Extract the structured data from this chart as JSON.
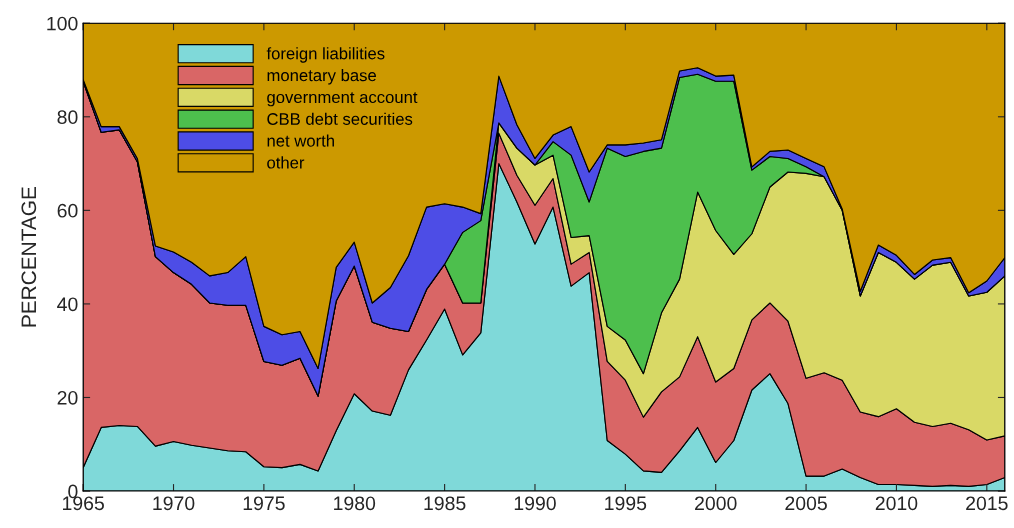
{
  "chart_data": {
    "type": "area",
    "stacked": true,
    "ylabel": "PERCENTAGE",
    "xlim": [
      1965,
      2016
    ],
    "ylim": [
      0,
      100
    ],
    "xticks": [
      1965,
      1970,
      1975,
      1980,
      1985,
      1990,
      1995,
      2000,
      2005,
      2010,
      2015
    ],
    "yticks": [
      0,
      20,
      40,
      60,
      80,
      100
    ],
    "grid": false,
    "legend": "top left",
    "x": [
      1965,
      1966,
      1967,
      1968,
      1969,
      1970,
      1971,
      1972,
      1973,
      1974,
      1975,
      1976,
      1977,
      1978,
      1979,
      1980,
      1981,
      1982,
      1983,
      1984,
      1985,
      1986,
      1987,
      1988,
      1989,
      1990,
      1991,
      1992,
      1993,
      1994,
      1995,
      1996,
      1997,
      1998,
      1999,
      2000,
      2001,
      2002,
      2003,
      2004,
      2005,
      2006,
      2007,
      2008,
      2009,
      2010,
      2011,
      2012,
      2013,
      2014,
      2015,
      2016
    ],
    "series": [
      {
        "name": "foreign liabilities",
        "color": "#7fd9d9",
        "values": [
          5.0,
          13.6,
          14.0,
          13.8,
          9.6,
          10.6,
          9.8,
          9.2,
          8.6,
          8.4,
          5.2,
          5.0,
          5.7,
          4.3,
          12.9,
          20.8,
          17.1,
          16.2,
          25.9,
          32.3,
          38.9,
          29.1,
          33.8,
          70.0,
          61.8,
          52.8,
          60.7,
          43.8,
          46.7,
          10.8,
          7.9,
          4.3,
          4.0,
          8.6,
          13.6,
          6.1,
          10.8,
          21.6,
          25.1,
          18.7,
          3.2,
          3.2,
          4.7,
          2.9,
          1.4,
          1.4,
          1.2,
          1.0,
          1.2,
          1.0,
          1.4,
          2.9
        ]
      },
      {
        "name": "monetary base",
        "color": "#d96666",
        "values": [
          82.6,
          63.1,
          63.2,
          56.6,
          40.5,
          36.1,
          34.4,
          31.0,
          31.1,
          31.3,
          22.5,
          21.9,
          22.7,
          16.0,
          27.7,
          27.3,
          19.0,
          18.6,
          8.2,
          10.8,
          9.6,
          11.1,
          6.4,
          6.5,
          5.7,
          8.3,
          6.1,
          4.7,
          4.3,
          16.9,
          15.8,
          11.5,
          17.2,
          15.8,
          19.4,
          17.2,
          15.4,
          15.0,
          15.1,
          17.6,
          20.9,
          22.1,
          19.0,
          14.0,
          14.5,
          16.2,
          13.5,
          12.8,
          13.3,
          12.1,
          9.5,
          8.9
        ]
      },
      {
        "name": "government account",
        "color": "#d9d966",
        "values": [
          0,
          0,
          0,
          0,
          0,
          0,
          0,
          0,
          0,
          0,
          0,
          0,
          0,
          0,
          0,
          0,
          0,
          0,
          0,
          0,
          0,
          0,
          0,
          2.2,
          5.8,
          8.6,
          5.0,
          5.7,
          3.6,
          7.5,
          8.6,
          9.3,
          16.9,
          20.9,
          30.9,
          32.4,
          24.4,
          18.4,
          24.8,
          31.9,
          43.8,
          41.9,
          36.3,
          24.8,
          35.1,
          31.3,
          30.6,
          34.5,
          34.4,
          28.6,
          31.6,
          34.2
        ]
      },
      {
        "name": "CBB debt securities",
        "color": "#4dbf4d",
        "values": [
          0,
          0,
          0,
          0,
          0,
          0,
          0,
          0,
          0,
          0,
          0,
          0,
          0,
          0,
          0,
          0,
          0,
          0,
          0,
          0,
          0,
          15.1,
          17.6,
          0,
          0,
          0,
          2.9,
          17.6,
          7.2,
          38.1,
          39.2,
          47.5,
          35.2,
          43.1,
          25.2,
          31.9,
          37.0,
          13.6,
          6.5,
          2.9,
          1.4,
          0,
          0,
          0,
          0,
          0,
          0,
          0,
          0,
          0,
          0,
          0
        ]
      },
      {
        "name": "net worth",
        "color": "#4d4de6",
        "values": [
          0.4,
          1.2,
          0.7,
          0.7,
          2.3,
          4.4,
          4.7,
          5.8,
          7.0,
          10.4,
          7.5,
          6.5,
          5.7,
          5.9,
          7.2,
          5.1,
          4.1,
          8.7,
          16.2,
          17.6,
          12.9,
          5.4,
          1.5,
          10.0,
          5.0,
          1.4,
          1.4,
          6.1,
          6.4,
          0.7,
          2.5,
          1.8,
          1.8,
          1.4,
          1.4,
          1.1,
          1.3,
          0.7,
          1.1,
          1.8,
          1.8,
          2.1,
          0.3,
          1.0,
          1.6,
          1.5,
          1.0,
          1.1,
          1.0,
          0.7,
          2.4,
          3.9
        ]
      },
      {
        "name": "other",
        "color": "#cc9900",
        "values": [
          12.0,
          22.1,
          22.1,
          28.9,
          47.6,
          48.9,
          51.1,
          54.0,
          53.3,
          49.9,
          64.8,
          66.6,
          65.9,
          73.8,
          52.2,
          46.8,
          59.8,
          56.5,
          49.7,
          39.3,
          38.6,
          39.3,
          40.7,
          11.3,
          21.7,
          28.9,
          23.9,
          22.1,
          31.8,
          26.0,
          26.0,
          25.6,
          24.9,
          10.2,
          9.5,
          11.3,
          11.1,
          30.7,
          27.4,
          27.1,
          28.9,
          30.7,
          39.7,
          57.3,
          47.4,
          49.6,
          53.7,
          50.6,
          50.1,
          57.6,
          55.1,
          50.1
        ]
      }
    ]
  }
}
